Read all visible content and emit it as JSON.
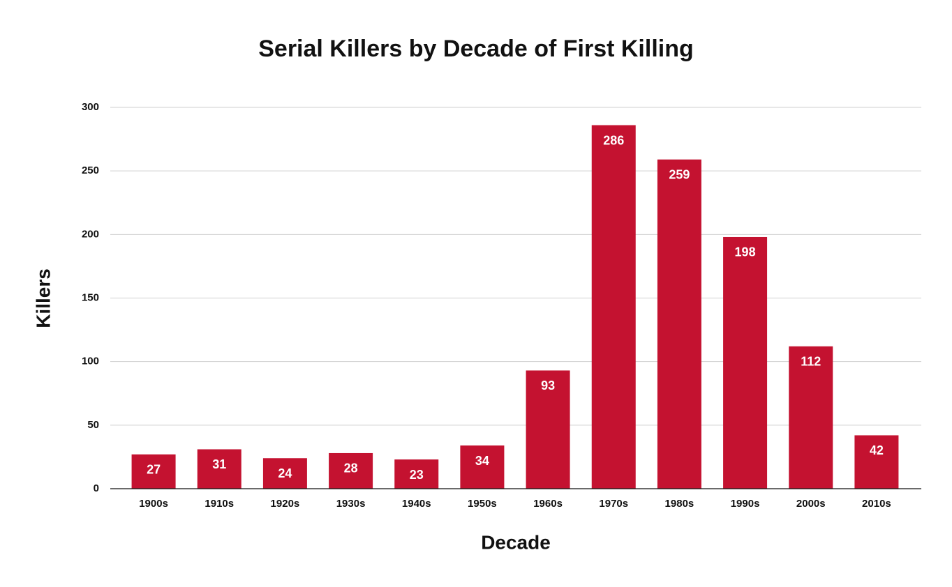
{
  "chart_data": {
    "type": "bar",
    "title": "Serial Killers by Decade of First Killing",
    "x_label": "Decade",
    "y_label": "Killers",
    "categories": [
      "1900s",
      "1910s",
      "1920s",
      "1930s",
      "1940s",
      "1950s",
      "1960s",
      "1970s",
      "1980s",
      "1990s",
      "2000s",
      "2010s"
    ],
    "values": [
      27,
      31,
      24,
      28,
      23,
      34,
      93,
      286,
      259,
      198,
      112,
      42
    ],
    "color": "#c41230",
    "ylim": [
      0,
      300
    ],
    "yticks": [
      0,
      50,
      100,
      150,
      200,
      250,
      300
    ],
    "grid": true
  }
}
